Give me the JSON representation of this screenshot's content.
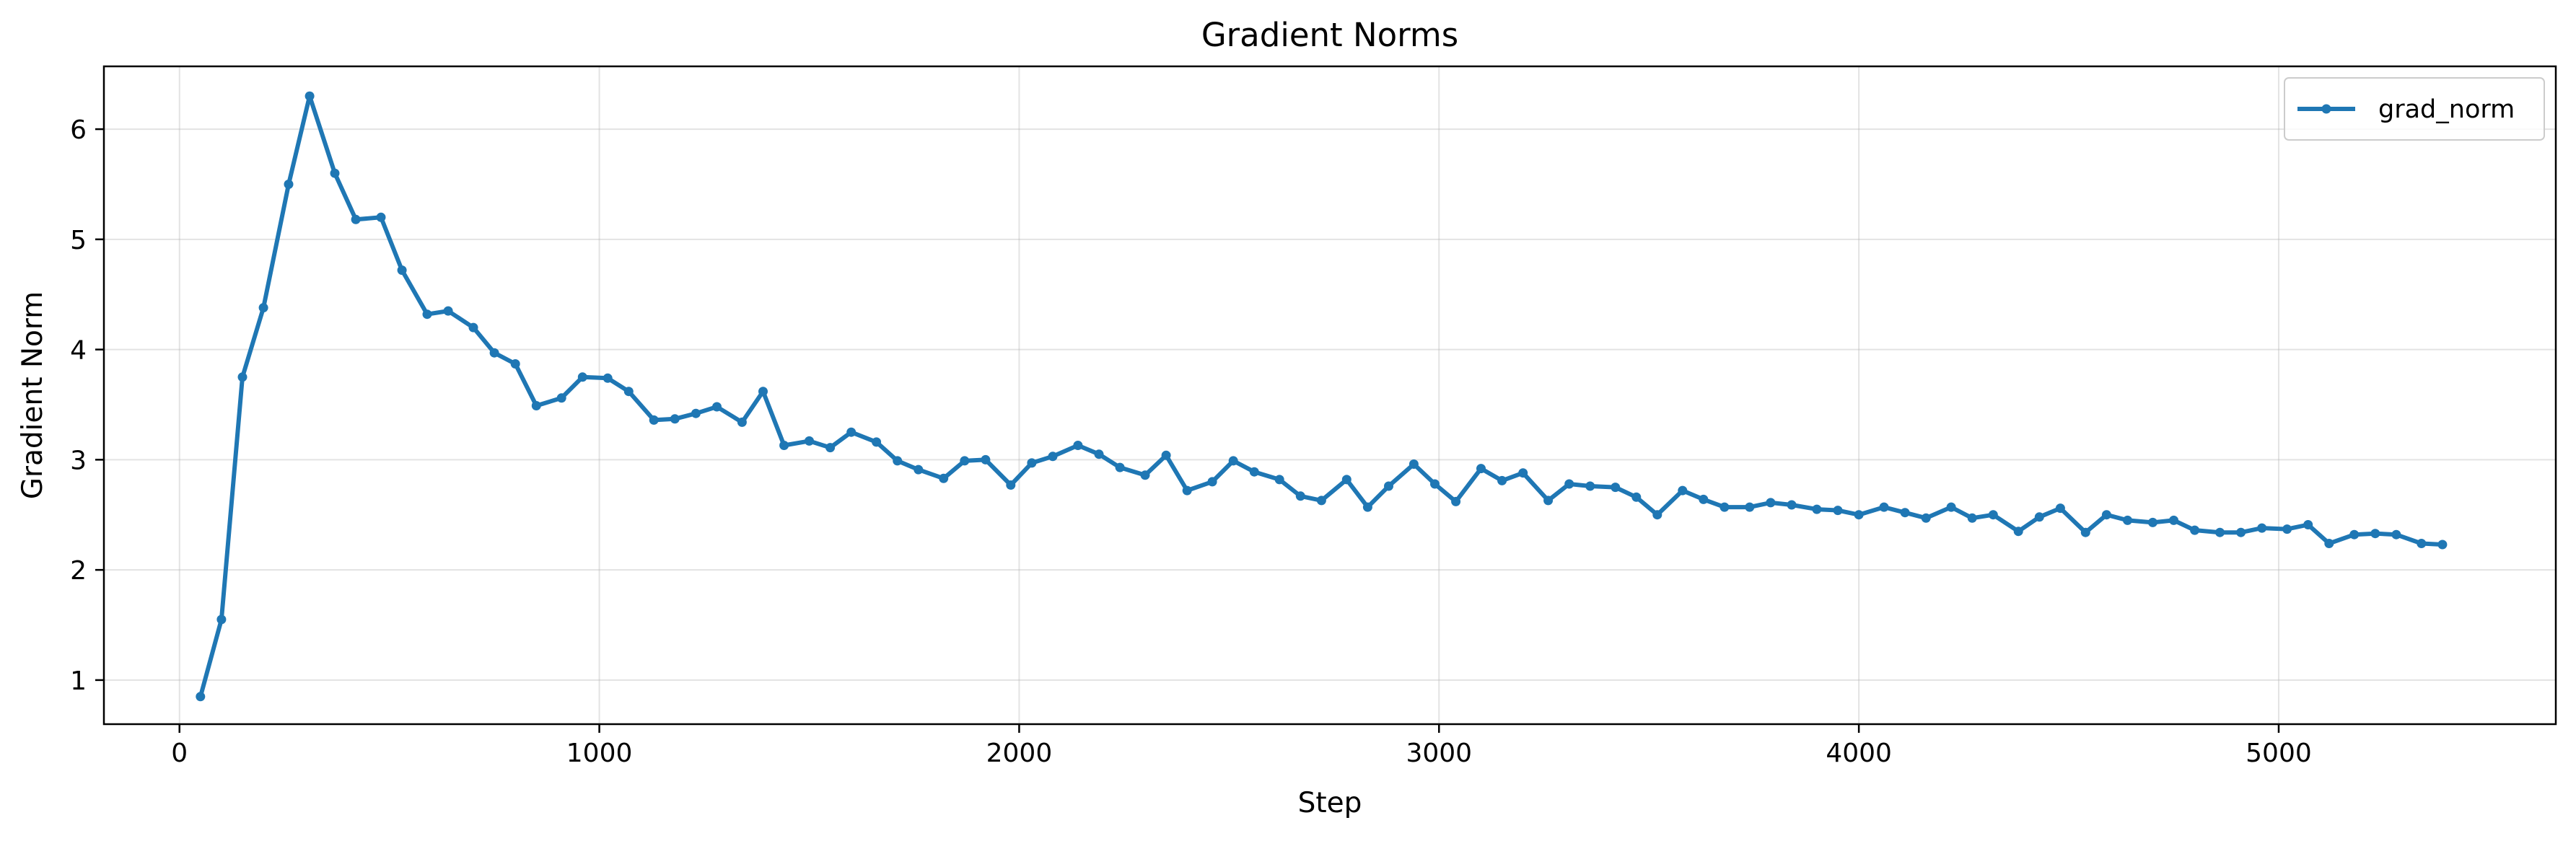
{
  "chart_data": {
    "type": "line",
    "title": "Gradient Norms",
    "xlabel": "Step",
    "ylabel": "Gradient Norm",
    "xlim": [
      -180,
      5660
    ],
    "ylim": [
      0.6,
      6.57
    ],
    "xticks": [
      0,
      1000,
      2000,
      3000,
      4000,
      5000
    ],
    "xtick_labels": [
      "0",
      "1000",
      "2000",
      "3000",
      "4000",
      "5000"
    ],
    "yticks": [
      1,
      2,
      3,
      4,
      5,
      6
    ],
    "ytick_labels": [
      "1",
      "2",
      "3",
      "4",
      "5",
      "6"
    ],
    "grid": true,
    "legend_position": "top-right",
    "series": [
      {
        "name": "grad_norm",
        "color": "#1f77b4",
        "marker": "circle",
        "x": [
          50,
          100,
          150,
          200,
          260,
          310,
          370,
          420,
          480,
          530,
          590,
          640,
          700,
          750,
          800,
          850,
          910,
          960,
          1020,
          1070,
          1130,
          1180,
          1230,
          1280,
          1340,
          1390,
          1440,
          1500,
          1550,
          1600,
          1660,
          1710,
          1760,
          1820,
          1870,
          1920,
          1980,
          2030,
          2080,
          2140,
          2190,
          2240,
          2300,
          2350,
          2400,
          2460,
          2510,
          2560,
          2620,
          2670,
          2720,
          2780,
          2830,
          2880,
          2940,
          2990,
          3040,
          3100,
          3150,
          3200,
          3260,
          3310,
          3360,
          3420,
          3470,
          3520,
          3580,
          3630,
          3680,
          3740,
          3790,
          3840,
          3900,
          3950,
          4000,
          4060,
          4110,
          4160,
          4220,
          4270,
          4320,
          4380,
          4430,
          4480,
          4540,
          4590,
          4640,
          4700,
          4750,
          4800,
          4860,
          4910,
          4960,
          5020,
          5070,
          5120,
          5180,
          5230,
          5280,
          5340,
          5390
        ],
        "y": [
          0.85,
          1.55,
          3.75,
          4.38,
          5.5,
          6.3,
          5.6,
          5.18,
          5.2,
          4.72,
          4.32,
          4.35,
          4.2,
          3.97,
          3.87,
          3.49,
          3.56,
          3.75,
          3.74,
          3.62,
          3.36,
          3.37,
          3.42,
          3.48,
          3.34,
          3.62,
          3.13,
          3.17,
          3.11,
          3.25,
          3.16,
          2.99,
          2.91,
          2.83,
          2.99,
          3.0,
          2.77,
          2.97,
          3.03,
          3.13,
          3.05,
          2.93,
          2.86,
          3.04,
          2.72,
          2.8,
          2.99,
          2.89,
          2.82,
          2.67,
          2.63,
          2.82,
          2.57,
          2.76,
          2.96,
          2.78,
          2.62,
          2.92,
          2.81,
          2.88,
          2.63,
          2.78,
          2.76,
          2.75,
          2.66,
          2.5,
          2.72,
          2.64,
          2.57,
          2.57,
          2.61,
          2.59,
          2.55,
          2.54,
          2.5,
          2.57,
          2.52,
          2.47,
          2.57,
          2.47,
          2.5,
          2.35,
          2.48,
          2.56,
          2.34,
          2.5,
          2.45,
          2.43,
          2.45,
          2.36,
          2.34,
          2.34,
          2.38,
          2.37,
          2.41,
          2.24,
          2.32,
          2.33,
          2.32,
          2.24,
          2.23
        ]
      }
    ]
  }
}
